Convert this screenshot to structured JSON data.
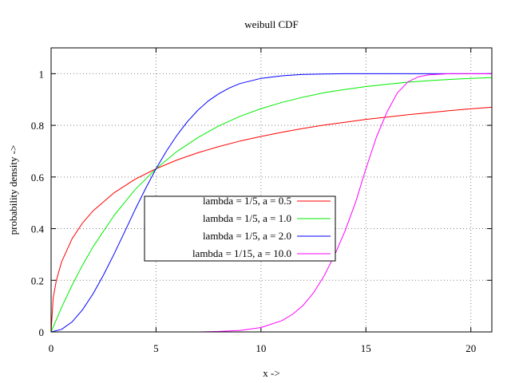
{
  "chart_data": {
    "type": "line",
    "title": "weibull CDF",
    "xlabel": "x ->",
    "ylabel": "probability density ->",
    "xlim": [
      0,
      21
    ],
    "ylim": [
      0,
      1.1
    ],
    "xticks": [
      0,
      5,
      10,
      15,
      20
    ],
    "yticks": [
      0,
      0.2,
      0.4,
      0.6,
      0.8,
      1
    ],
    "xtick_labels": [
      "0",
      "5",
      "10",
      "15",
      "20"
    ],
    "ytick_labels": [
      "0",
      "0.2",
      "0.4",
      "0.6",
      "0.8",
      "1"
    ],
    "grid": true,
    "legend_position": "center",
    "series": [
      {
        "name": "lambda = 1/5, a = 0.5",
        "color": "#ff0000",
        "x": [
          0,
          0.1,
          0.25,
          0.5,
          1,
          1.5,
          2,
          3,
          4,
          5,
          6,
          7,
          8,
          9,
          10,
          11,
          12,
          13,
          14,
          15,
          16,
          17,
          18,
          19,
          20,
          21
        ],
        "y": [
          0,
          0.132,
          0.2,
          0.271,
          0.361,
          0.422,
          0.469,
          0.539,
          0.591,
          0.632,
          0.666,
          0.694,
          0.718,
          0.739,
          0.757,
          0.773,
          0.788,
          0.801,
          0.812,
          0.823,
          0.832,
          0.841,
          0.849,
          0.857,
          0.864,
          0.87
        ]
      },
      {
        "name": "lambda = 1/5, a = 1.0",
        "color": "#00ee00",
        "x": [
          0,
          0.5,
          1,
          1.5,
          2,
          3,
          4,
          5,
          6,
          7,
          8,
          9,
          10,
          11,
          12,
          13,
          14,
          15,
          16,
          17,
          18,
          19,
          20,
          21
        ],
        "y": [
          0,
          0.095,
          0.181,
          0.259,
          0.33,
          0.451,
          0.551,
          0.632,
          0.699,
          0.753,
          0.798,
          0.835,
          0.865,
          0.889,
          0.909,
          0.926,
          0.939,
          0.95,
          0.959,
          0.967,
          0.973,
          0.978,
          0.982,
          0.985
        ]
      },
      {
        "name": "lambda = 1/5, a = 2.0",
        "color": "#0000ff",
        "x": [
          0,
          0.5,
          1,
          1.5,
          2,
          2.5,
          3,
          3.5,
          4,
          4.5,
          5,
          5.5,
          6,
          6.5,
          7,
          7.5,
          8,
          8.5,
          9,
          10,
          11,
          12,
          13,
          14,
          15,
          17,
          19,
          21
        ],
        "y": [
          0,
          0.01,
          0.039,
          0.086,
          0.148,
          0.221,
          0.302,
          0.387,
          0.473,
          0.555,
          0.632,
          0.701,
          0.762,
          0.815,
          0.859,
          0.895,
          0.923,
          0.945,
          0.962,
          0.982,
          0.992,
          0.997,
          0.999,
          1.0,
          1.0,
          1.0,
          1.0,
          1.0
        ]
      },
      {
        "name": "lambda = 1/15, a = 10.0",
        "color": "#ff00ff",
        "x": [
          7,
          8,
          9,
          10,
          11,
          11.5,
          12,
          12.5,
          13,
          13.5,
          14,
          14.5,
          15,
          15.5,
          16,
          16.5,
          17,
          17.5,
          18,
          19,
          20,
          21
        ],
        "y": [
          0,
          0.002,
          0.006,
          0.017,
          0.044,
          0.068,
          0.102,
          0.151,
          0.216,
          0.296,
          0.39,
          0.5,
          0.632,
          0.754,
          0.851,
          0.926,
          0.968,
          0.988,
          0.996,
          1.0,
          1.0,
          1.0
        ]
      }
    ]
  }
}
